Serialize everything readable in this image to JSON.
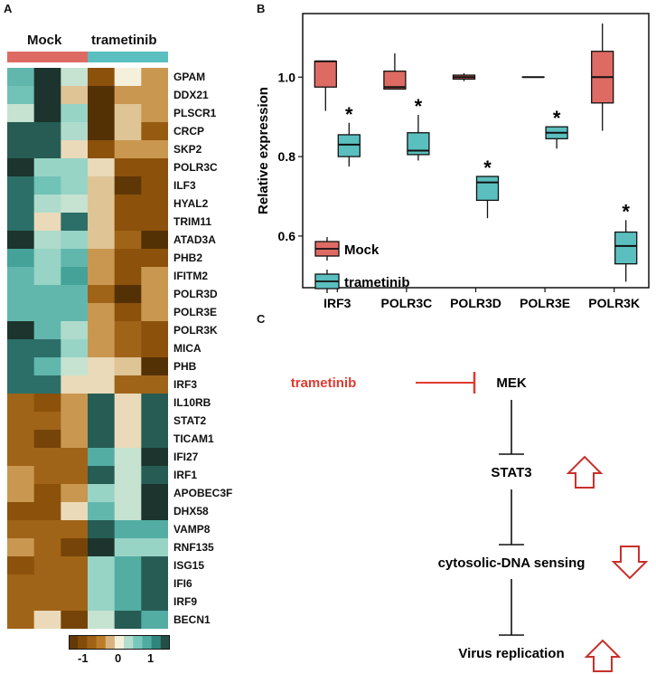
{
  "panels": {
    "a": "A",
    "b": "B",
    "c": "C"
  },
  "colors": {
    "mock": "#de6b63",
    "trametinib": "#5bbfbf",
    "inhibit": "#e03a30",
    "arrow": "#c9302a"
  },
  "chart_data": [
    {
      "type": "heatmap",
      "group_labels": [
        "Mock",
        "trametinib"
      ],
      "columns_per_group": 3,
      "rows": [
        "GPAM",
        "DDX21",
        "PLSCR1",
        "CRCP",
        "SKP2",
        "POLR3C",
        "ILF3",
        "HYAL2",
        "TRIM11",
        "ATAD3A",
        "PHB2",
        "IFITM2",
        "POLR3D",
        "POLR3E",
        "POLR3K",
        "MICA",
        "PHB",
        "IRF3",
        "IL10RB",
        "STAT2",
        "TICAM1",
        "IFI27",
        "IRF1",
        "APOBEC3F",
        "DHX58",
        "VAMP8",
        "RNF135",
        "ISG15",
        "IFI6",
        "IRF9",
        "BECN1"
      ],
      "values": [
        [
          0.7,
          1.5,
          0.2,
          -1.0,
          0.0,
          -0.4
        ],
        [
          0.6,
          1.5,
          -0.2,
          -1.5,
          -0.4,
          -0.4
        ],
        [
          0.2,
          1.5,
          0.4,
          -1.5,
          -0.2,
          -0.4
        ],
        [
          1.3,
          1.3,
          0.3,
          -1.5,
          -0.2,
          -0.9
        ],
        [
          1.3,
          1.3,
          -0.1,
          -1.0,
          -0.4,
          -0.4
        ],
        [
          1.5,
          0.4,
          0.4,
          -0.1,
          -1.0,
          -1.0
        ],
        [
          1.2,
          0.6,
          0.4,
          -0.2,
          -1.4,
          -1.0
        ],
        [
          1.2,
          0.3,
          0.2,
          -0.2,
          -1.0,
          -1.0
        ],
        [
          1.2,
          -0.1,
          1.2,
          -0.2,
          -1.0,
          -1.0
        ],
        [
          1.5,
          0.3,
          0.4,
          -0.2,
          -0.8,
          -1.5
        ],
        [
          0.9,
          0.4,
          0.7,
          -0.4,
          -1.0,
          -1.0
        ],
        [
          0.7,
          0.4,
          0.9,
          -0.4,
          -1.0,
          -0.4
        ],
        [
          0.7,
          0.7,
          0.7,
          -0.8,
          -1.5,
          -0.4
        ],
        [
          0.7,
          0.7,
          0.7,
          -0.4,
          -1.0,
          -0.4
        ],
        [
          1.5,
          0.7,
          0.3,
          -0.4,
          -0.8,
          -1.0
        ],
        [
          1.2,
          1.2,
          0.4,
          -0.4,
          -0.8,
          -1.0
        ],
        [
          1.2,
          0.7,
          0.2,
          -0.1,
          -0.2,
          -1.5
        ],
        [
          1.2,
          1.2,
          -0.1,
          -0.1,
          -0.8,
          -0.8
        ],
        [
          -0.8,
          -1.0,
          -0.4,
          1.3,
          -0.1,
          1.3
        ],
        [
          -0.8,
          -0.8,
          -0.4,
          1.3,
          -0.1,
          1.3
        ],
        [
          -0.8,
          -1.2,
          -0.4,
          1.3,
          -0.1,
          1.3
        ],
        [
          -0.8,
          -0.8,
          -0.8,
          0.8,
          0.2,
          1.5
        ],
        [
          -0.4,
          -0.8,
          -0.8,
          1.3,
          0.2,
          1.3
        ],
        [
          -0.4,
          -1.0,
          -0.4,
          0.4,
          0.2,
          1.5
        ],
        [
          -1.0,
          -1.0,
          -0.1,
          0.7,
          0.2,
          1.5
        ],
        [
          -0.8,
          -0.8,
          -0.8,
          1.3,
          0.8,
          0.8
        ],
        [
          -0.4,
          -0.8,
          -1.2,
          1.5,
          0.4,
          0.4
        ],
        [
          -1.0,
          -0.8,
          -0.8,
          0.4,
          0.8,
          1.3
        ],
        [
          -0.8,
          -0.8,
          -0.8,
          0.4,
          0.8,
          1.3
        ],
        [
          -0.8,
          -0.8,
          -0.8,
          0.4,
          0.8,
          1.3
        ],
        [
          -0.8,
          -0.1,
          -1.2,
          0.2,
          1.3,
          0.8
        ]
      ],
      "colorbar": {
        "ticks": [
          "-1",
          "0",
          "1"
        ],
        "range": [
          -1.5,
          1.5
        ]
      }
    },
    {
      "type": "boxplot",
      "ylabel": "Relative expression",
      "categories": [
        "IRF3",
        "POLR3C",
        "POLR3D",
        "POLR3E",
        "POLR3K"
      ],
      "yticks": [
        "0.6",
        "0.8",
        "1.0"
      ],
      "ylim": [
        0.47,
        1.16
      ],
      "legend": {
        "position": "bottom-left",
        "entries": [
          "Mock",
          "trametinib"
        ]
      },
      "series": [
        {
          "name": "Mock",
          "boxes": [
            {
              "min": 0.915,
              "q1": 0.975,
              "median": 1.04,
              "q3": 1.04,
              "max": 1.04
            },
            {
              "min": 0.97,
              "q1": 0.97,
              "median": 0.975,
              "q3": 1.015,
              "max": 1.06
            },
            {
              "min": 0.99,
              "q1": 0.995,
              "median": 1.0,
              "q3": 1.005,
              "max": 1.01
            },
            {
              "min": 1.0,
              "q1": 1.0,
              "median": 1.0,
              "q3": 1.0,
              "max": 1.0
            },
            {
              "min": 0.865,
              "q1": 0.935,
              "median": 1.0,
              "q3": 1.065,
              "max": 1.135
            }
          ]
        },
        {
          "name": "trametinib",
          "boxes": [
            {
              "min": 0.775,
              "q1": 0.8,
              "median": 0.83,
              "q3": 0.855,
              "max": 0.885,
              "star": "*"
            },
            {
              "min": 0.79,
              "q1": 0.805,
              "median": 0.815,
              "q3": 0.86,
              "max": 0.905,
              "star": "*"
            },
            {
              "min": 0.645,
              "q1": 0.69,
              "median": 0.735,
              "q3": 0.75,
              "max": 0.75,
              "star": "*"
            },
            {
              "min": 0.82,
              "q1": 0.845,
              "median": 0.86,
              "q3": 0.875,
              "max": 0.875,
              "star": "*"
            },
            {
              "min": 0.485,
              "q1": 0.53,
              "median": 0.575,
              "q3": 0.61,
              "max": 0.64,
              "star": "*"
            }
          ]
        }
      ]
    }
  ],
  "pathway": {
    "drug": "trametinib",
    "mek": "MEK",
    "stat3": "STAT3",
    "dna_sensing": "cytosolic-DNA sensing",
    "virus": "Virus replication"
  }
}
